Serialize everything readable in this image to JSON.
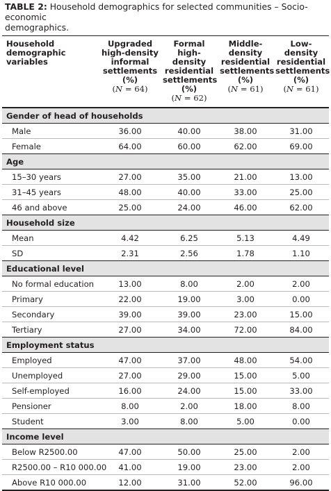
{
  "caption": {
    "label": "TABLE 2:",
    "text": "Household demographics for selected communities – Socio-economic\ndemographics."
  },
  "header": {
    "first": "Household\ndemographic\nvariables",
    "cols": [
      {
        "title": "Upgraded\nhigh-density\ninformal\nsettlements\n(%)",
        "n_prefix": "(",
        "n_var": "N",
        "n_rest": " = 64)"
      },
      {
        "title": "Formal\nhigh-density\nresidential\nsettlements\n(%)",
        "n_prefix": "(",
        "n_var": "N",
        "n_rest": " = 62)"
      },
      {
        "title": "Middle-\ndensity\nresidential\nsettlements\n(%)",
        "n_prefix": "(",
        "n_var": "N",
        "n_rest": " = 61)"
      },
      {
        "title": "Low-\ndensity\nresidential\nsettlements\n(%)",
        "n_prefix": "(",
        "n_var": "N",
        "n_rest": " = 61)"
      }
    ]
  },
  "sections": [
    {
      "title": "Gender of head of households",
      "rows": [
        {
          "label": "Male",
          "values": [
            "36.00",
            "40.00",
            "38.00",
            "31.00"
          ]
        },
        {
          "label": "Female",
          "values": [
            "64.00",
            "60.00",
            "62.00",
            "69.00"
          ]
        }
      ]
    },
    {
      "title": "Age",
      "rows": [
        {
          "label": "15–30 years",
          "values": [
            "27.00",
            "35.00",
            "21.00",
            "13.00"
          ]
        },
        {
          "label": "31–45 years",
          "values": [
            "48.00",
            "40.00",
            "33.00",
            "25.00"
          ]
        },
        {
          "label": "46 and above",
          "values": [
            "25.00",
            "24.00",
            "46.00",
            "62.00"
          ]
        }
      ]
    },
    {
      "title": "Household size",
      "rows": [
        {
          "label": "Mean",
          "values": [
            "4.42",
            "6.25",
            "5.13",
            "4.49"
          ]
        },
        {
          "label": "SD",
          "values": [
            "2.31",
            "2.56",
            "1.78",
            "1.10"
          ]
        }
      ]
    },
    {
      "title": "Educational level",
      "rows": [
        {
          "label": "No formal education",
          "values": [
            "13.00",
            "8.00",
            "2.00",
            "2.00"
          ]
        },
        {
          "label": "Primary",
          "values": [
            "22.00",
            "19.00",
            "3.00",
            "0.00"
          ]
        },
        {
          "label": "Secondary",
          "values": [
            "39.00",
            "39.00",
            "23.00",
            "15.00"
          ]
        },
        {
          "label": "Tertiary",
          "values": [
            "27.00",
            "34.00",
            "72.00",
            "84.00"
          ]
        }
      ]
    },
    {
      "title": "Employment status",
      "rows": [
        {
          "label": "Employed",
          "values": [
            "47.00",
            "37.00",
            "48.00",
            "54.00"
          ]
        },
        {
          "label": "Unemployed",
          "values": [
            "27.00",
            "29.00",
            "15.00",
            "5.00"
          ]
        },
        {
          "label": "Self-employed",
          "values": [
            "16.00",
            "24.00",
            "15.00",
            "33.00"
          ]
        },
        {
          "label": "Pensioner",
          "values": [
            "8.00",
            "2.00",
            "18.00",
            "8.00"
          ]
        },
        {
          "label": "Student",
          "values": [
            "3.00",
            "8.00",
            "5.00",
            "0.00"
          ]
        }
      ]
    },
    {
      "title": "Income level",
      "rows": [
        {
          "label": "Below R2500.00",
          "values": [
            "47.00",
            "50.00",
            "25.00",
            "2.00"
          ]
        },
        {
          "label": "R2500.00 – R10 000.00",
          "values": [
            "41.00",
            "19.00",
            "23.00",
            "2.00"
          ]
        },
        {
          "label": "Above R10 000.00",
          "values": [
            "12.00",
            "31.00",
            "52.00",
            "96.00"
          ]
        }
      ]
    }
  ]
}
